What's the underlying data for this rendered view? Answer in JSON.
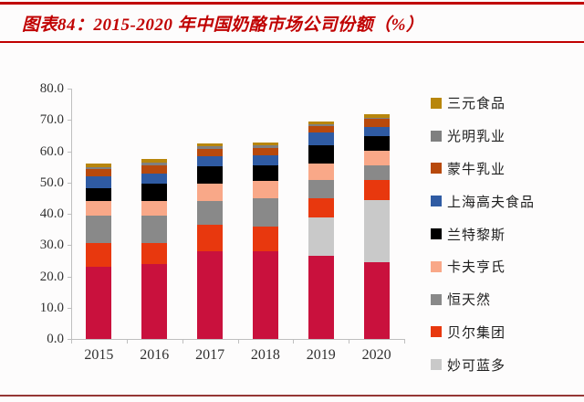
{
  "title": "图表84：2015-2020 年中国奶酪市场公司份额（%）",
  "colors": {
    "title_text": "#c00000",
    "top_rule": "#c00000",
    "title_underline": "#c00000",
    "bottom_rule": "#953735",
    "axis_line": "#bfbfbf",
    "tick_text": "#303030"
  },
  "chart_data": {
    "type": "bar",
    "stacked": true,
    "grid": false,
    "legend_position": "right",
    "categories": [
      "2015",
      "2016",
      "2017",
      "2018",
      "2019",
      "2020"
    ],
    "ylim": [
      0,
      80
    ],
    "ytick_step": 10,
    "ytick_labels_top_to_bottom": [
      "80.0",
      "70.0",
      "60.0",
      "50.0",
      "40.0",
      "30.0",
      "20.0",
      "10.0",
      "0.0"
    ],
    "series_bottom_to_top": [
      {
        "name": "",
        "legend_visible": false,
        "note": "bottom crimson series; its legend entry is cropped out of the visible frame",
        "color": "#c9113d",
        "values": [
          23.0,
          24.0,
          28.0,
          28.0,
          26.5,
          24.5
        ]
      },
      {
        "name": "妙可蓝多",
        "legend_visible": true,
        "color": "#c9c9c9",
        "values": [
          0,
          0,
          0,
          0,
          12.2,
          20.0
        ]
      },
      {
        "name": "贝尔集团",
        "legend_visible": true,
        "color": "#e8380e",
        "values": [
          7.8,
          6.8,
          8.4,
          7.8,
          6.3,
          6.3
        ]
      },
      {
        "name": "恒天然",
        "legend_visible": true,
        "color": "#898989",
        "values": [
          8.6,
          8.7,
          7.8,
          9.3,
          5.8,
          4.7
        ]
      },
      {
        "name": "卡夫亨氏",
        "legend_visible": true,
        "color": "#f9a888",
        "values": [
          4.6,
          4.6,
          5.3,
          5.3,
          5.4,
          4.7
        ]
      },
      {
        "name": "兰特黎斯",
        "legend_visible": true,
        "color": "#000000",
        "values": [
          4.3,
          5.4,
          5.6,
          5.1,
          5.8,
          4.5
        ]
      },
      {
        "name": "上海高夫食品",
        "legend_visible": true,
        "color": "#2f5ba3",
        "values": [
          3.6,
          3.4,
          3.4,
          3.2,
          3.9,
          3.1
        ]
      },
      {
        "name": "蒙牛乳业",
        "legend_visible": true,
        "color": "#b8490c",
        "values": [
          2.3,
          2.6,
          2.3,
          2.4,
          2.1,
          2.5
        ]
      },
      {
        "name": "光明乳业",
        "legend_visible": true,
        "color": "#7f7f7f",
        "values": [
          0.8,
          0.8,
          0.7,
          0.7,
          0.6,
          0.4
        ]
      },
      {
        "name": "三元食品",
        "legend_visible": true,
        "color": "#b8860b",
        "values": [
          1.0,
          1.1,
          1.0,
          1.0,
          1.0,
          1.0
        ]
      }
    ],
    "totals_by_year": [
      56.0,
      57.4,
      62.5,
      62.8,
      69.6,
      71.7
    ],
    "legend_order_top_to_bottom": [
      "三元食品",
      "光明乳业",
      "蒙牛乳业",
      "上海高夫食品",
      "兰特黎斯",
      "卡夫亨氏",
      "恒天然",
      "贝尔集团",
      "妙可蓝多"
    ]
  }
}
